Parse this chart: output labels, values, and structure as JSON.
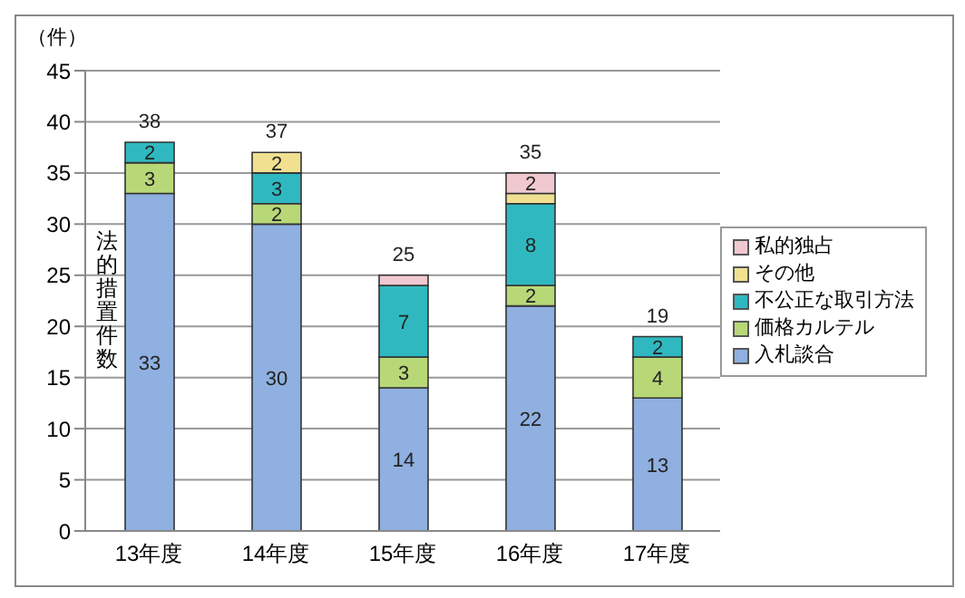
{
  "chart_data": {
    "type": "bar",
    "stacked": true,
    "ylabel": "法的措置件数",
    "annotations": [
      "（件）"
    ],
    "categories": [
      "13年度",
      "14年度",
      "15年度",
      "16年度",
      "17年度"
    ],
    "series": [
      {
        "name": "入札談合",
        "color": "#8fb0e0",
        "values": [
          33,
          30,
          14,
          22,
          13
        ],
        "value_labels": [
          "33",
          "30",
          "14",
          "22",
          "13"
        ]
      },
      {
        "name": "価格カルテル",
        "color": "#b8d878",
        "values": [
          3,
          2,
          3,
          2,
          4
        ],
        "value_labels": [
          "3",
          "2",
          "3",
          "2",
          "4"
        ]
      },
      {
        "name": "不公正な取引方法",
        "color": "#30b8c0",
        "values": [
          2,
          3,
          7,
          8,
          2
        ],
        "value_labels": [
          "2",
          "3",
          "7",
          "8",
          "2"
        ]
      },
      {
        "name": "その他",
        "color": "#f0e090",
        "values": [
          0,
          2,
          0,
          1,
          0
        ],
        "value_labels": [
          null,
          "2",
          null,
          null,
          null
        ]
      },
      {
        "name": "私的独占",
        "color": "#f0c8d0",
        "values": [
          0,
          0,
          1,
          2,
          0
        ],
        "value_labels": [
          null,
          null,
          null,
          "2",
          null
        ]
      }
    ],
    "totals": [
      "38",
      "37",
      "25",
      "35",
      "19"
    ],
    "ylim": [
      0,
      45
    ],
    "yticks": [
      0,
      5,
      10,
      15,
      20,
      25,
      30,
      35,
      40,
      45
    ],
    "grid": "y",
    "legend": "right"
  }
}
